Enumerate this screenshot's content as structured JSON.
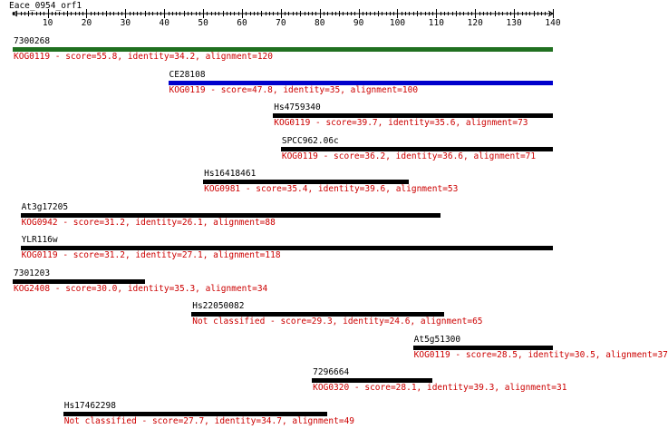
{
  "axis": {
    "title": "Eace_0954_orf1",
    "min": 1,
    "max": 140,
    "tick_labels": [
      "10",
      "20",
      "30",
      "40",
      "50",
      "60",
      "70",
      "80",
      "90",
      "100",
      "110",
      "120",
      "130",
      "140"
    ]
  },
  "hits": [
    {
      "name": "7300268",
      "start": 1,
      "end": 140,
      "color": "#207020",
      "desc": "KOG0119 - score=55.8, identity=34.2, alignment=120"
    },
    {
      "name": "CE28108",
      "start": 41,
      "end": 140,
      "color": "#0000cc",
      "desc": "KOG0119 - score=47.8, identity=35, alignment=100"
    },
    {
      "name": "Hs4759340",
      "start": 68,
      "end": 140,
      "color": "#000000",
      "desc": "KOG0119 - score=39.7, identity=35.6, alignment=73"
    },
    {
      "name": "SPCC962.06c",
      "start": 70,
      "end": 140,
      "color": "#000000",
      "desc": "KOG0119 - score=36.2, identity=36.6, alignment=71"
    },
    {
      "name": "Hs16418461",
      "start": 50,
      "end": 103,
      "color": "#000000",
      "desc": "KOG0981 - score=35.4, identity=39.6, alignment=53"
    },
    {
      "name": "At3g17205",
      "start": 3,
      "end": 111,
      "color": "#000000",
      "desc": "KOG0942 - score=31.2, identity=26.1, alignment=88"
    },
    {
      "name": "YLR116w",
      "start": 3,
      "end": 140,
      "color": "#000000",
      "desc": "KOG0119 - score=31.2, identity=27.1, alignment=118"
    },
    {
      "name": "7301203",
      "start": 1,
      "end": 35,
      "color": "#000000",
      "desc": "KOG2408 - score=30.0, identity=35.3, alignment=34"
    },
    {
      "name": "Hs22050082",
      "start": 47,
      "end": 112,
      "color": "#000000",
      "desc": "Not classified - score=29.3, identity=24.6, alignment=65"
    },
    {
      "name": "At5g51300",
      "start": 104,
      "end": 140,
      "color": "#000000",
      "desc": "KOG0119 - score=28.5, identity=30.5, alignment=37"
    },
    {
      "name": "7296664",
      "start": 78,
      "end": 109,
      "color": "#000000",
      "desc": "KOG0320 - score=28.1, identity=39.3, alignment=31"
    },
    {
      "name": "Hs17462298",
      "start": 14,
      "end": 82,
      "color": "#000000",
      "desc": "Not classified - score=27.7, identity=34.7, alignment=49"
    }
  ]
}
